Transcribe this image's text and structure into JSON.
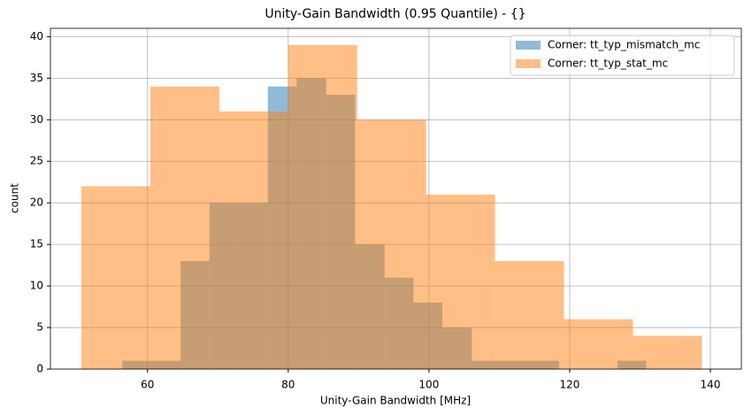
{
  "chart_data": {
    "type": "histogram",
    "title": "Unity-Gain Bandwidth (0.95 Quantile) - {}",
    "x_label": "Unity-Gain Bandwidth [MHz]",
    "y_label": "count",
    "series": [
      {
        "name": "Corner: tt_typ_mismatch_mc",
        "color": "#1f77b4",
        "alpha": 0.5,
        "bins": [
          56.4,
          60.5,
          64.7,
          68.8,
          73.0,
          77.1,
          81.2,
          85.4,
          89.5,
          93.7,
          97.8,
          101.9,
          106.1,
          110.2,
          114.4,
          118.5,
          122.6,
          126.8,
          130.9
        ],
        "values": [
          1,
          1,
          13,
          20,
          20,
          34,
          35,
          33,
          15,
          11,
          8,
          5,
          1,
          1,
          1,
          0,
          0,
          1
        ]
      },
      {
        "name": "Corner: tt_typ_stat_mc",
        "color": "#ff7f0e",
        "alpha": 0.5,
        "bins": [
          50.6,
          60.4,
          70.2,
          80.0,
          89.8,
          99.6,
          109.4,
          119.2,
          129.0,
          138.8
        ],
        "values": [
          22,
          34,
          31,
          39,
          30,
          21,
          13,
          6,
          4
        ]
      }
    ],
    "xlim": [
      46.2,
      144.4
    ],
    "xticks": [
      60,
      80,
      100,
      120,
      140
    ],
    "ylim": [
      0,
      41
    ],
    "yticks": [
      0,
      5,
      10,
      15,
      20,
      25,
      30,
      35,
      40
    ],
    "grid": true,
    "legend": "upper right"
  }
}
